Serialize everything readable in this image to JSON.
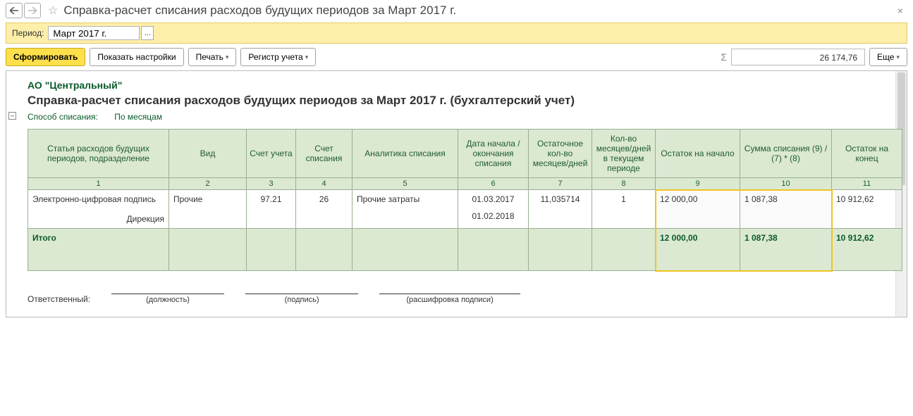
{
  "titlebar": {
    "title": "Справка-расчет списания расходов будущих периодов за Март 2017 г."
  },
  "period": {
    "label": "Период:",
    "value": "Март 2017 г."
  },
  "toolbar": {
    "form": "Сформировать",
    "settings": "Показать настройки",
    "print": "Печать",
    "register": "Регистр учета",
    "sum": "26 174,76",
    "more": "Еще"
  },
  "report": {
    "org": "АО \"Центральный\"",
    "title": "Справка-расчет списания расходов будущих периодов  за Март 2017 г. (бухгалтерский учет)",
    "method_label": "Способ списания:",
    "method_value": "По месяцам",
    "columns": {
      "c1": "Статья расходов будущих периодов, подразделение",
      "c2": "Вид",
      "c3": "Счет учета",
      "c4": "Счет списания",
      "c5": "Аналитика списания",
      "c6": "Дата начала / окончания списания",
      "c7": "Остаточное кол-во месяцев/дней",
      "c8": "Кол-во месяцев/дней в текущем периоде",
      "c9": "Остаток на начало",
      "c10": "Сумма списания (9) / (7) * (8)",
      "c11": "Остаток на конец"
    },
    "colnums": {
      "n1": "1",
      "n2": "2",
      "n3": "3",
      "n4": "4",
      "n5": "5",
      "n6": "6",
      "n7": "7",
      "n8": "8",
      "n9": "9",
      "n10": "10",
      "n11": "11"
    },
    "row": {
      "article": "Электронно-цифровая подпись",
      "subdiv": "Дирекция",
      "kind": "Прочие",
      "acct": "97.21",
      "acct_off": "26",
      "analytics": "Прочие затраты",
      "date_start": "01.03.2017",
      "date_end": "01.02.2018",
      "rem_months": "11,035714",
      "cur_months": "1",
      "start_bal": "12 000,00",
      "writeoff": "1 087,38",
      "end_bal": "10 912,62"
    },
    "totals": {
      "label": "Итого",
      "start_bal": "12 000,00",
      "writeoff": "1 087,38",
      "end_bal": "10 912,62"
    },
    "col_widths": {
      "c1": "200",
      "c2": "110",
      "c3": "70",
      "c4": "80",
      "c5": "150",
      "c6": "100",
      "c7": "90",
      "c8": "90",
      "c9": "120",
      "c10": "130",
      "c11": "100"
    }
  },
  "signatures": {
    "resp": "Ответственный:",
    "post": "(должность)",
    "sign": "(подпись)",
    "name": "(расшифровка подписи)"
  },
  "colors": {
    "header_bg": "#dbe8d2",
    "accent_green": "#0a5a2a",
    "period_bg": "#fdeea9",
    "primary_btn": "#ffe04a",
    "highlight_border": "#f0c420"
  }
}
